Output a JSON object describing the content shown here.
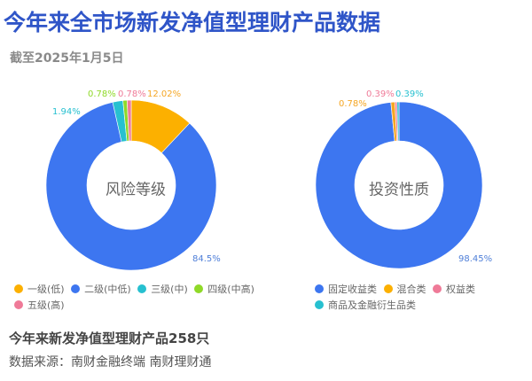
{
  "header": {
    "title": "今年来全市场新发净值型理财产品数据",
    "subtitle": "截至2025年1月5日"
  },
  "footer": {
    "summary": "今年来新发净值型理财产品258只",
    "source": "数据来源：南财金融终端 南财理财通"
  },
  "chart_data": [
    {
      "type": "pie",
      "variant": "donut",
      "title": "风险等级",
      "center_label": "风险等级",
      "categories": [
        "一级(低)",
        "二级(中低)",
        "三级(中)",
        "四级(中高)",
        "五级(高)"
      ],
      "values": [
        12.02,
        84.5,
        1.94,
        0.78,
        0.78
      ],
      "labels": [
        "12.02%",
        "84.5%",
        "1.94%",
        "0.78%",
        "0.78%"
      ],
      "colors": [
        "#fcb000",
        "#3d76f0",
        "#27c0d0",
        "#8fd928",
        "#ef7a98"
      ],
      "legend_position": "bottom"
    },
    {
      "type": "pie",
      "variant": "donut",
      "title": "投资性质",
      "center_label": "投资性质",
      "categories": [
        "固定收益类",
        "混合类",
        "权益类",
        "商品及金融衍生品类"
      ],
      "values": [
        98.45,
        0.78,
        0.39,
        0.39
      ],
      "labels": [
        "98.45%",
        "0.78%",
        "0.39%",
        "0.39%"
      ],
      "colors": [
        "#3d76f0",
        "#f5a623",
        "#ef7a98",
        "#27c0d0"
      ],
      "legend_position": "bottom"
    }
  ]
}
